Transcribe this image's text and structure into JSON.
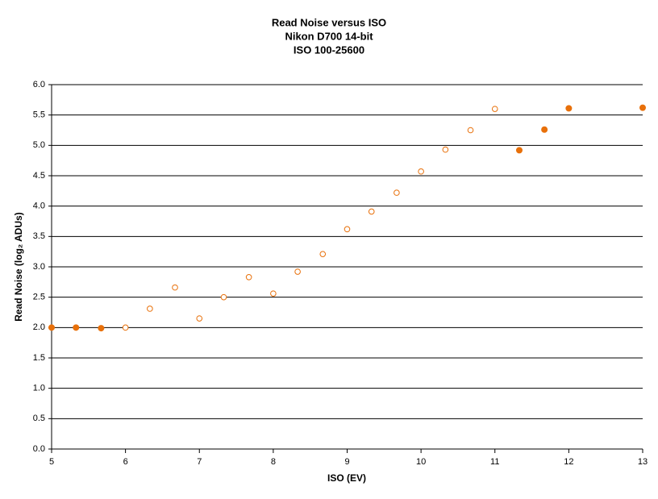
{
  "chart_data": {
    "type": "scatter",
    "title": [
      "Read Noise versus ISO",
      "Nikon D700 14-bit",
      "ISO 100-25600"
    ],
    "x_label": "ISO (EV)",
    "y_label": "Read Noise (log₂ ADUs)",
    "xlim": [
      5,
      13
    ],
    "ylim": [
      0,
      6
    ],
    "xticks": [
      5,
      6,
      7,
      8,
      9,
      10,
      11,
      12,
      13
    ],
    "yticks": [
      {
        "value": 0,
        "label": "0.0"
      },
      {
        "value": 0.5,
        "label": "0.5"
      },
      {
        "value": 1,
        "label": "1.0"
      },
      {
        "value": 1.5,
        "label": "1.5"
      },
      {
        "value": 2,
        "label": "2.0"
      },
      {
        "value": 2.5,
        "label": "2.5"
      },
      {
        "value": 3,
        "label": "3.0"
      },
      {
        "value": 3.5,
        "label": "3.5"
      },
      {
        "value": 4,
        "label": "4.0"
      },
      {
        "value": 4.5,
        "label": "4.5"
      },
      {
        "value": 5,
        "label": "5.0"
      },
      {
        "value": 5.5,
        "label": "5.5"
      },
      {
        "value": 6,
        "label": "6.0"
      }
    ],
    "grid": true,
    "series": [
      {
        "color": "#e8700a",
        "marker": "filled",
        "x": [
          5,
          5.33,
          5.67,
          11.33,
          11.67,
          12,
          13
        ],
        "values": [
          2.0,
          2.0,
          1.99,
          4.92,
          5.26,
          5.61,
          5.62
        ]
      },
      {
        "color": "#e8700a",
        "marker": "open",
        "x": [
          6,
          6.33,
          6.67,
          7,
          7.33,
          7.67,
          8,
          8.33,
          8.67,
          9,
          9.33,
          9.67,
          10,
          10.33,
          10.67,
          11
        ],
        "values": [
          2.0,
          2.31,
          2.66,
          2.15,
          2.5,
          2.83,
          2.56,
          2.92,
          3.21,
          3.62,
          3.91,
          4.22,
          4.57,
          4.93,
          5.25,
          5.6
        ]
      }
    ]
  }
}
